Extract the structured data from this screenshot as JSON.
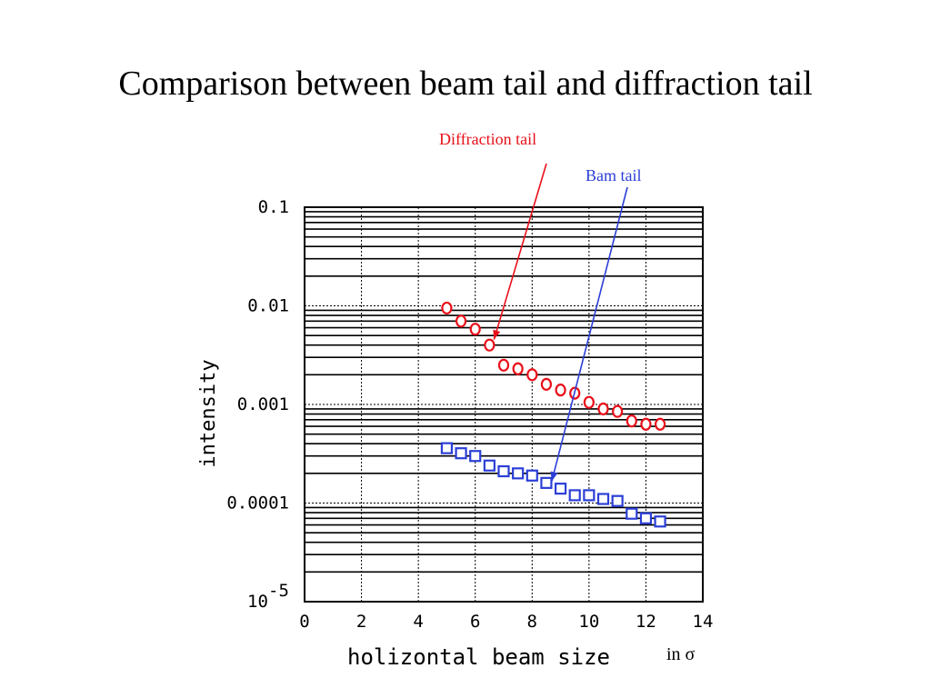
{
  "slide": {
    "title": "Comparison between beam tail and diffraction tail"
  },
  "annotations": {
    "diffraction": "Diffraction tail",
    "beam": "Bam tail"
  },
  "colors": {
    "diffraction": "#e8101a",
    "beam": "#2b3fd6"
  },
  "chart_data": {
    "type": "scatter",
    "xlabel": "holizontal beam size",
    "xlabel_suffix": "in σ",
    "ylabel": "intensity",
    "xlim": [
      0,
      14
    ],
    "ylim": [
      1e-05,
      0.1
    ],
    "yscale": "log",
    "grid": true,
    "x_ticks": [
      "0",
      "2",
      "4",
      "6",
      "8",
      "10",
      "12",
      "14"
    ],
    "y_ticks": [
      {
        "value": 0.1,
        "label": "0.1"
      },
      {
        "value": 0.01,
        "label": "0.01"
      },
      {
        "value": 0.001,
        "label": "0.001"
      },
      {
        "value": 0.0001,
        "label": "0.0001"
      },
      {
        "value": 1e-05,
        "base": "10",
        "exp": "-5"
      }
    ],
    "series": [
      {
        "key": "diffraction",
        "marker": "circle",
        "points": [
          [
            5.0,
            0.0095
          ],
          [
            5.5,
            0.007
          ],
          [
            6.0,
            0.0058
          ],
          [
            6.5,
            0.004
          ],
          [
            7.0,
            0.0025
          ],
          [
            7.5,
            0.0023
          ],
          [
            8.0,
            0.002
          ],
          [
            8.5,
            0.0016
          ],
          [
            9.0,
            0.0014
          ],
          [
            9.5,
            0.0013
          ],
          [
            10.0,
            0.00105
          ],
          [
            10.5,
            0.0009
          ],
          [
            11.0,
            0.00085
          ],
          [
            11.5,
            0.00068
          ],
          [
            12.0,
            0.00063
          ],
          [
            12.5,
            0.00063
          ]
        ]
      },
      {
        "key": "beam",
        "marker": "square",
        "points": [
          [
            5.0,
            0.00036
          ],
          [
            5.5,
            0.00032
          ],
          [
            6.0,
            0.0003
          ],
          [
            6.5,
            0.00024
          ],
          [
            7.0,
            0.00021
          ],
          [
            7.5,
            0.0002
          ],
          [
            8.0,
            0.00019
          ],
          [
            8.5,
            0.00016
          ],
          [
            9.0,
            0.00014
          ],
          [
            9.5,
            0.00012
          ],
          [
            10.0,
            0.00012
          ],
          [
            10.5,
            0.00011
          ],
          [
            11.0,
            0.000105
          ],
          [
            11.5,
            7.8e-05
          ],
          [
            12.0,
            7e-05
          ],
          [
            12.5,
            6.5e-05
          ]
        ]
      }
    ]
  }
}
